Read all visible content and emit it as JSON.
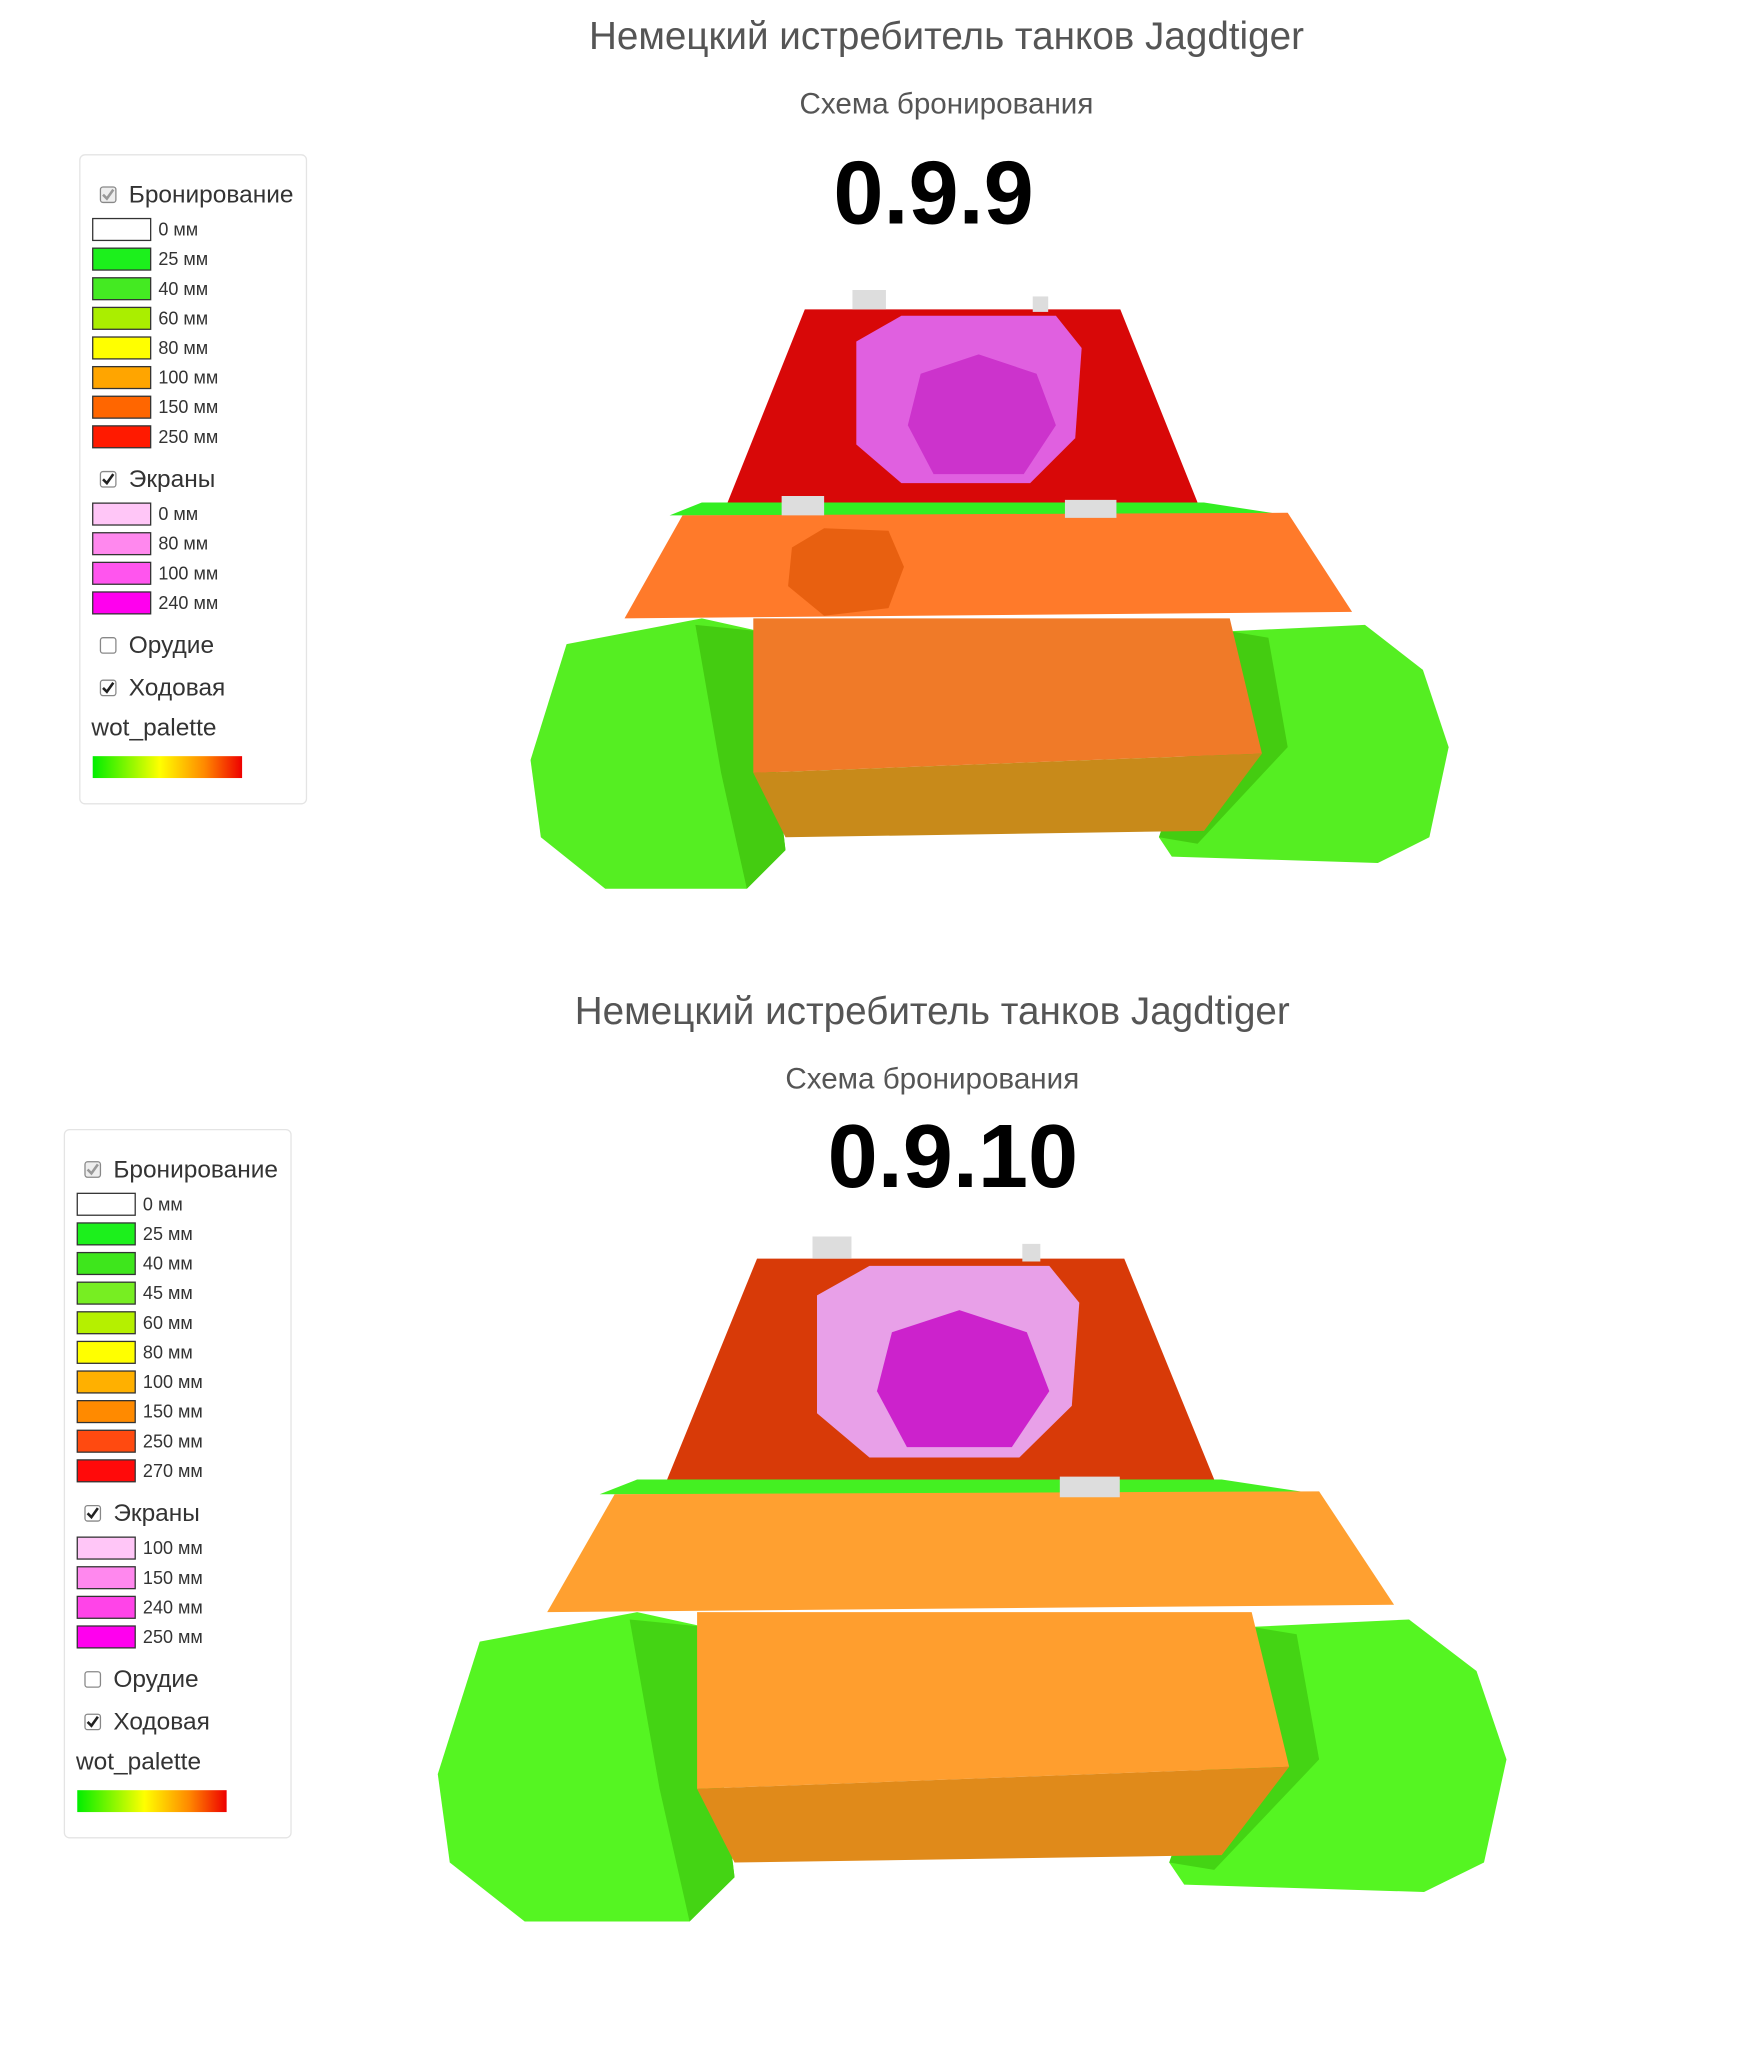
{
  "panels": [
    {
      "title": "Немецкий истребитель танков Jagdtiger",
      "subtitle": "Схема бронирования",
      "version": "0.9.9",
      "legend": {
        "armor": {
          "label": "Бронирование",
          "checked": true,
          "items": [
            {
              "label": "0 мм",
              "color": "#ffffff"
            },
            {
              "label": "25 мм",
              "color": "#1cf01c"
            },
            {
              "label": "40 мм",
              "color": "#44ea22"
            },
            {
              "label": "60 мм",
              "color": "#aaee00"
            },
            {
              "label": "80 мм",
              "color": "#ffff00"
            },
            {
              "label": "100 мм",
              "color": "#ffa500"
            },
            {
              "label": "150 мм",
              "color": "#ff6600"
            },
            {
              "label": "250 мм",
              "color": "#ff1a00"
            }
          ]
        },
        "screens": {
          "label": "Экраны",
          "checked": true,
          "items": [
            {
              "label": "0 мм",
              "color": "#ffc6f7"
            },
            {
              "label": "80 мм",
              "color": "#ff88ee"
            },
            {
              "label": "100 мм",
              "color": "#ff55ee"
            },
            {
              "label": "240 мм",
              "color": "#ff00ee"
            }
          ]
        },
        "gun": {
          "label": "Орудие",
          "checked": false
        },
        "chassis": {
          "label": "Ходовая",
          "checked": true
        },
        "palette": "wot_palette"
      }
    },
    {
      "title": "Немецкий истребитель танков Jagdtiger",
      "subtitle": "Схема бронирования",
      "version": "0.9.10",
      "legend": {
        "armor": {
          "label": "Бронирование",
          "checked": true,
          "items": [
            {
              "label": "0 мм",
              "color": "#ffffff"
            },
            {
              "label": "25 мм",
              "color": "#1cf01c"
            },
            {
              "label": "40 мм",
              "color": "#3ee61c"
            },
            {
              "label": "45 мм",
              "color": "#77ee22"
            },
            {
              "label": "60 мм",
              "color": "#b5f000"
            },
            {
              "label": "80 мм",
              "color": "#ffff00"
            },
            {
              "label": "100 мм",
              "color": "#ffb000"
            },
            {
              "label": "150 мм",
              "color": "#ff8a00"
            },
            {
              "label": "250 мм",
              "color": "#ff4a10"
            },
            {
              "label": "270 мм",
              "color": "#ff0a0a"
            }
          ]
        },
        "screens": {
          "label": "Экраны",
          "checked": true,
          "items": [
            {
              "label": "100 мм",
              "color": "#ffc6f7"
            },
            {
              "label": "150 мм",
              "color": "#ff88ee"
            },
            {
              "label": "240 мм",
              "color": "#ff44e8"
            },
            {
              "label": "250 мм",
              "color": "#ff00ee"
            }
          ]
        },
        "gun": {
          "label": "Орудие",
          "checked": false
        },
        "chassis": {
          "label": "Ходовая",
          "checked": true
        },
        "palette": "wot_palette"
      }
    }
  ]
}
